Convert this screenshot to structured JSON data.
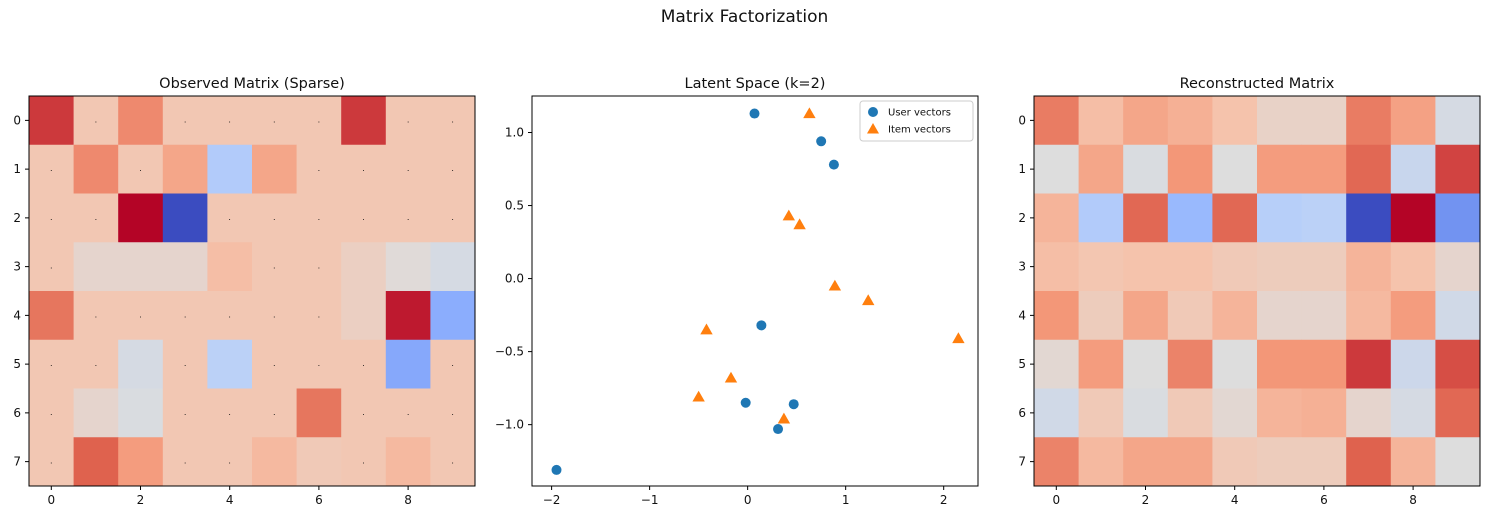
{
  "figure": {
    "title": "Matrix Factorization"
  },
  "chart_data": [
    {
      "type": "heatmap",
      "title": "Observed Matrix (Sparse)",
      "xlabel": "",
      "ylabel": "",
      "rows": 8,
      "cols": 10,
      "xticks": [
        0,
        2,
        4,
        6,
        8
      ],
      "yticks": [
        0,
        1,
        2,
        3,
        4,
        5,
        6,
        7
      ],
      "missing_marker": ".",
      "vmin": -3.5,
      "vmax": 3.5,
      "values": [
        [
          3.0,
          null,
          2.0,
          null,
          null,
          null,
          null,
          3.0,
          null,
          null
        ],
        [
          null,
          2.0,
          null,
          1.5,
          -1.0,
          1.5,
          null,
          null,
          null,
          null
        ],
        [
          null,
          null,
          3.5,
          -3.5,
          null,
          null,
          null,
          null,
          null,
          null
        ],
        [
          null,
          0.3,
          0.3,
          0.3,
          1.0,
          null,
          null,
          0.5,
          0.1,
          -0.2
        ],
        [
          2.3,
          null,
          null,
          null,
          null,
          null,
          null,
          0.5,
          3.3,
          -1.8
        ],
        [
          null,
          null,
          -0.2,
          null,
          -0.8,
          null,
          null,
          null,
          -1.9,
          null
        ],
        [
          null,
          0.3,
          -0.1,
          null,
          null,
          null,
          2.3,
          null,
          null,
          null
        ],
        [
          null,
          2.6,
          1.7,
          null,
          null,
          1.1,
          0.7,
          null,
          1.1,
          null
        ]
      ]
    },
    {
      "type": "scatter",
      "title": "Latent Space (k=2)",
      "xlabel": "",
      "ylabel": "",
      "xlim": [
        -2.2,
        2.35
      ],
      "ylim": [
        -1.42,
        1.25
      ],
      "xticks": [
        -2,
        -1,
        0,
        1,
        2
      ],
      "yticks": [
        -1.0,
        -0.5,
        0.0,
        0.5,
        1.0
      ],
      "xtick_labels": [
        "−2",
        "−1",
        "0",
        "1",
        "2"
      ],
      "ytick_labels": [
        "−1.0",
        "−0.5",
        "0.0",
        "0.5",
        "1.0"
      ],
      "legend_position": "top-right",
      "series": [
        {
          "name": "User vectors",
          "marker": "circle",
          "color": "#1f77b4",
          "points": [
            [
              0.07,
              1.13
            ],
            [
              0.75,
              0.94
            ],
            [
              0.88,
              0.78
            ],
            [
              0.14,
              -0.32
            ],
            [
              -0.02,
              -0.85
            ],
            [
              0.47,
              -0.86
            ],
            [
              0.31,
              -1.03
            ],
            [
              -1.95,
              -1.31
            ]
          ]
        },
        {
          "name": "Item vectors",
          "marker": "triangle",
          "color": "#ff7f0e",
          "points": [
            [
              0.63,
              1.13
            ],
            [
              0.42,
              0.43
            ],
            [
              0.53,
              0.37
            ],
            [
              0.89,
              -0.05
            ],
            [
              1.23,
              -0.15
            ],
            [
              2.15,
              -0.41
            ],
            [
              -0.42,
              -0.35
            ],
            [
              -0.17,
              -0.68
            ],
            [
              -0.5,
              -0.81
            ],
            [
              0.37,
              -0.96
            ]
          ]
        }
      ]
    },
    {
      "type": "heatmap",
      "title": "Reconstructed Matrix",
      "xlabel": "",
      "ylabel": "",
      "rows": 8,
      "cols": 10,
      "xticks": [
        0,
        2,
        4,
        6,
        8
      ],
      "yticks": [
        0,
        1,
        2,
        3,
        4,
        5,
        6,
        7
      ],
      "vmin": -3.5,
      "vmax": 3.5,
      "values": [
        [
          2.2,
          1.0,
          1.5,
          1.3,
          0.9,
          0.4,
          0.4,
          2.2,
          1.6,
          -0.2
        ],
        [
          0.0,
          1.5,
          -0.1,
          1.8,
          0.0,
          1.7,
          1.7,
          2.5,
          -0.5,
          2.9
        ],
        [
          1.2,
          -1.0,
          2.5,
          -1.5,
          2.5,
          -0.9,
          -0.8,
          -3.5,
          3.5,
          -2.3
        ],
        [
          1.0,
          0.8,
          0.9,
          0.9,
          0.7,
          0.6,
          0.6,
          1.2,
          0.9,
          0.3
        ],
        [
          1.8,
          0.6,
          1.5,
          0.7,
          1.2,
          0.3,
          0.3,
          1.1,
          1.7,
          -0.3
        ],
        [
          0.2,
          1.7,
          0.0,
          2.1,
          0.0,
          1.8,
          1.8,
          3.0,
          -0.4,
          2.8
        ],
        [
          -0.3,
          0.7,
          -0.1,
          0.7,
          0.2,
          1.2,
          1.3,
          0.3,
          -0.2,
          2.5
        ],
        [
          2.1,
          1.1,
          1.5,
          1.5,
          0.7,
          0.6,
          0.6,
          2.6,
          1.2,
          0.0
        ]
      ]
    }
  ]
}
